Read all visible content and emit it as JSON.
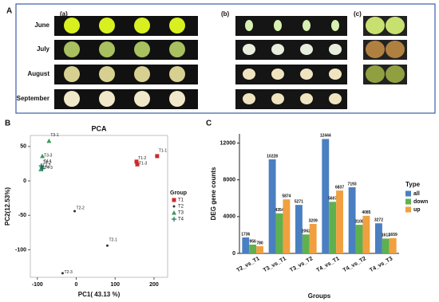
{
  "panel_a": {
    "label": "A",
    "sublabels": [
      "(a)",
      "(b)",
      "(c)"
    ],
    "months": [
      "June",
      "July",
      "August",
      "September"
    ]
  },
  "chart_data": [
    {
      "type": "scatter",
      "panel_label": "B",
      "title": "PCA",
      "x_label": "PC1( 43.13 %)",
      "y_label": "PC2(12.53%)",
      "xlim": [
        -118,
        235
      ],
      "ylim": [
        -140,
        66
      ],
      "xticks": [
        -100,
        0,
        100,
        200
      ],
      "yticks": [
        50,
        0,
        -50,
        -100
      ],
      "legend_title": "Group",
      "series": [
        {
          "name": "T1",
          "color": "#cc2a2a",
          "marker": "square",
          "labels": [
            "T1-1",
            "T1-2",
            "T1-3"
          ],
          "x": [
            208,
            155,
            157
          ],
          "y": [
            36,
            28,
            24
          ]
        },
        {
          "name": "T2",
          "color": "#333333",
          "marker": "circle",
          "labels": [
            "T2-1",
            "T2-2",
            "T2-3"
          ],
          "x": [
            80,
            -4,
            -35
          ],
          "y": [
            -94,
            -44,
            -134
          ]
        },
        {
          "name": "T3",
          "color": "#3a9a5a",
          "marker": "triangle",
          "labels": [
            "T3-1",
            "T3-2",
            "T3-3"
          ],
          "x": [
            -70,
            -91,
            -87
          ],
          "y": [
            58,
            17,
            36
          ]
        },
        {
          "name": "T4",
          "color": "#1f6f5f",
          "marker": "plus",
          "labels": [
            "T4-1",
            "T4-2",
            "T4-3"
          ],
          "x": [
            -88,
            -90,
            -86
          ],
          "y": [
            20,
            22,
            18
          ]
        }
      ]
    },
    {
      "type": "bar",
      "panel_label": "C",
      "x_label": "Groups",
      "y_label": "DEG gene counts",
      "legend_title": "Type",
      "categories": [
        "T2_vs_T1",
        "T3_vs_T1",
        "T3_vs_T2",
        "T4_vs_T1",
        "T4_vs_T2",
        "T4_vs_T3"
      ],
      "ylim": [
        0,
        13000
      ],
      "yticks": [
        0,
        4000,
        8000,
        12000
      ],
      "series": [
        {
          "name": "all",
          "color": "#4a7fc1",
          "values": [
            1736,
            10228,
            5271,
            12444,
            7193,
            3272
          ]
        },
        {
          "name": "down",
          "color": "#5fb14e",
          "values": [
            956,
            4354,
            2062,
            5607,
            3108,
            1613
          ]
        },
        {
          "name": "up",
          "color": "#f0a040",
          "values": [
            780,
            5874,
            3209,
            6837,
            4085,
            1659
          ]
        }
      ]
    }
  ]
}
